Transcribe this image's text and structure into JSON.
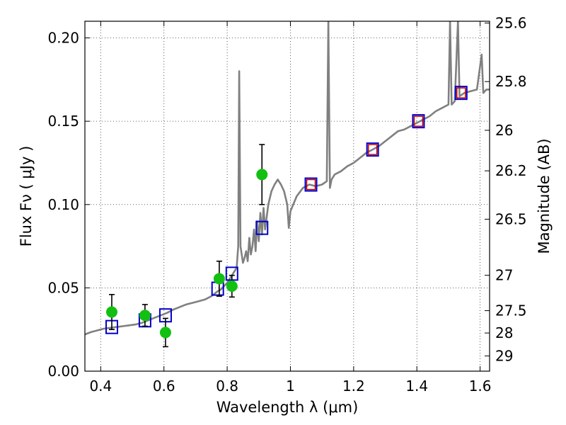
{
  "chart_data": {
    "type": "scatter",
    "xlabel": "Wavelength  λ (μm)",
    "ylabel": "Flux  Fν  ( μJy )",
    "ylabel_right": "Magnitude (AB)",
    "xlim": [
      0.35,
      1.63
    ],
    "ylim": [
      0.0,
      0.21
    ],
    "grid": true,
    "x_ticks": [
      {
        "value": 0.4,
        "label": "0.4"
      },
      {
        "value": 0.6,
        "label": "0.6"
      },
      {
        "value": 0.8,
        "label": "0.8"
      },
      {
        "value": 1.0,
        "label": "1"
      },
      {
        "value": 1.2,
        "label": "1.2"
      },
      {
        "value": 1.4,
        "label": "1.4"
      },
      {
        "value": 1.6,
        "label": "1.6"
      }
    ],
    "y_ticks": [
      {
        "value": 0.0,
        "label": "0.00"
      },
      {
        "value": 0.05,
        "label": "0.05"
      },
      {
        "value": 0.1,
        "label": "0.10"
      },
      {
        "value": 0.15,
        "label": "0.15"
      },
      {
        "value": 0.2,
        "label": "0.20"
      }
    ],
    "right_ticks": [
      {
        "value": 25.6,
        "label": "25.6"
      },
      {
        "value": 25.8,
        "label": "25.8"
      },
      {
        "value": 26.0,
        "label": "26"
      },
      {
        "value": 26.2,
        "label": "26.2"
      },
      {
        "value": 26.5,
        "label": "26.5"
      },
      {
        "value": 27.0,
        "label": "27"
      },
      {
        "value": 27.5,
        "label": "27.5"
      },
      {
        "value": 28.0,
        "label": "28"
      },
      {
        "value": 29.0,
        "label": "29"
      }
    ],
    "series": [
      {
        "kind": "line",
        "color": "#808080",
        "points": [
          [
            0.35,
            0.022
          ],
          [
            0.37,
            0.0235
          ],
          [
            0.39,
            0.0245
          ],
          [
            0.41,
            0.0255
          ],
          [
            0.43,
            0.026
          ],
          [
            0.45,
            0.0265
          ],
          [
            0.47,
            0.027
          ],
          [
            0.49,
            0.0275
          ],
          [
            0.51,
            0.028
          ],
          [
            0.53,
            0.029
          ],
          [
            0.55,
            0.0305
          ],
          [
            0.57,
            0.032
          ],
          [
            0.59,
            0.0335
          ],
          [
            0.61,
            0.035
          ],
          [
            0.63,
            0.037
          ],
          [
            0.65,
            0.0385
          ],
          [
            0.67,
            0.04
          ],
          [
            0.69,
            0.041
          ],
          [
            0.71,
            0.042
          ],
          [
            0.73,
            0.043
          ],
          [
            0.75,
            0.045
          ],
          [
            0.77,
            0.048
          ],
          [
            0.78,
            0.049
          ],
          [
            0.79,
            0.051
          ],
          [
            0.8,
            0.053
          ],
          [
            0.81,
            0.056
          ],
          [
            0.82,
            0.059
          ],
          [
            0.83,
            0.062
          ],
          [
            0.835,
            0.075
          ],
          [
            0.838,
            0.18
          ],
          [
            0.842,
            0.075
          ],
          [
            0.85,
            0.065
          ],
          [
            0.855,
            0.068
          ],
          [
            0.86,
            0.072
          ],
          [
            0.865,
            0.066
          ],
          [
            0.87,
            0.08
          ],
          [
            0.875,
            0.07
          ],
          [
            0.88,
            0.075
          ],
          [
            0.885,
            0.085
          ],
          [
            0.89,
            0.072
          ],
          [
            0.895,
            0.09
          ],
          [
            0.9,
            0.078
          ],
          [
            0.905,
            0.095
          ],
          [
            0.91,
            0.082
          ],
          [
            0.915,
            0.098
          ],
          [
            0.92,
            0.085
          ],
          [
            0.93,
            0.1
          ],
          [
            0.94,
            0.108
          ],
          [
            0.95,
            0.112
          ],
          [
            0.96,
            0.115
          ],
          [
            0.97,
            0.112
          ],
          [
            0.98,
            0.108
          ],
          [
            0.99,
            0.1
          ],
          [
            0.995,
            0.086
          ],
          [
            1.0,
            0.096
          ],
          [
            1.02,
            0.105
          ],
          [
            1.04,
            0.11
          ],
          [
            1.06,
            0.112
          ],
          [
            1.08,
            0.111
          ],
          [
            1.1,
            0.112
          ],
          [
            1.115,
            0.114
          ],
          [
            1.12,
            0.21
          ],
          [
            1.125,
            0.11
          ],
          [
            1.13,
            0.115
          ],
          [
            1.14,
            0.118
          ],
          [
            1.16,
            0.12
          ],
          [
            1.18,
            0.123
          ],
          [
            1.2,
            0.125
          ],
          [
            1.22,
            0.128
          ],
          [
            1.24,
            0.131
          ],
          [
            1.26,
            0.133
          ],
          [
            1.28,
            0.135
          ],
          [
            1.3,
            0.138
          ],
          [
            1.32,
            0.141
          ],
          [
            1.34,
            0.144
          ],
          [
            1.36,
            0.145
          ],
          [
            1.38,
            0.147
          ],
          [
            1.4,
            0.149
          ],
          [
            1.42,
            0.151
          ],
          [
            1.44,
            0.153
          ],
          [
            1.46,
            0.156
          ],
          [
            1.48,
            0.158
          ],
          [
            1.5,
            0.16
          ],
          [
            1.505,
            0.21
          ],
          [
            1.51,
            0.16
          ],
          [
            1.52,
            0.162
          ],
          [
            1.53,
            0.21
          ],
          [
            1.535,
            0.165
          ],
          [
            1.55,
            0.167
          ],
          [
            1.57,
            0.168
          ],
          [
            1.59,
            0.169
          ],
          [
            1.605,
            0.19
          ],
          [
            1.61,
            0.167
          ],
          [
            1.62,
            0.169
          ],
          [
            1.63,
            0.169
          ]
        ]
      },
      {
        "kind": "errorbar",
        "color": "#12c012",
        "points": [
          {
            "x": 0.435,
            "y": 0.0355,
            "err": 0.0105
          },
          {
            "x": 0.54,
            "y": 0.0335,
            "err": 0.0065
          },
          {
            "x": 0.605,
            "y": 0.0232,
            "err": 0.0085
          },
          {
            "x": 0.775,
            "y": 0.0555,
            "err": 0.0105
          },
          {
            "x": 0.815,
            "y": 0.051,
            "err": 0.0065
          },
          {
            "x": 0.91,
            "y": 0.118,
            "err": 0.018
          }
        ]
      },
      {
        "kind": "squares",
        "color": "#0000cc",
        "points": [
          [
            0.435,
            0.0265
          ],
          [
            0.54,
            0.0305
          ],
          [
            0.605,
            0.0335
          ],
          [
            0.77,
            0.0495
          ],
          [
            0.815,
            0.0585
          ],
          [
            0.91,
            0.086
          ],
          [
            1.065,
            0.112
          ],
          [
            1.26,
            0.133
          ],
          [
            1.405,
            0.15
          ],
          [
            1.54,
            0.167
          ]
        ]
      },
      {
        "kind": "marks",
        "color": "#cc0000",
        "points": [
          [
            1.065,
            0.112
          ],
          [
            1.26,
            0.133
          ],
          [
            1.405,
            0.15
          ],
          [
            1.54,
            0.167
          ]
        ]
      }
    ]
  }
}
